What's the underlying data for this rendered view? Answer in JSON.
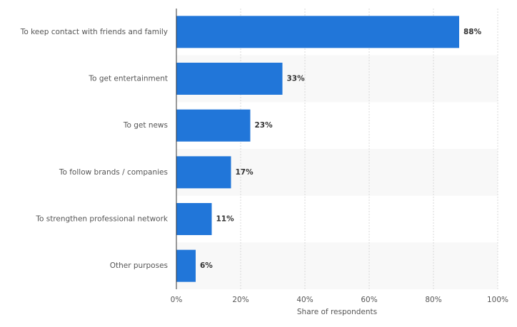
{
  "chart_data": {
    "type": "hbar",
    "categories": [
      "To keep contact with friends and family",
      "To get entertainment",
      "To get news",
      "To follow brands / companies",
      "To strengthen professional network",
      "Other purposes"
    ],
    "values": [
      88,
      33,
      23,
      17,
      11,
      6
    ],
    "value_labels": [
      "88%",
      "33%",
      "23%",
      "17%",
      "11%",
      "6%"
    ],
    "color": "#2176d9",
    "xlabel": "Share of respondents",
    "xlim": [
      0,
      100
    ],
    "xticks": [
      {
        "value": 0,
        "label": "0%"
      },
      {
        "value": 20,
        "label": "20%"
      },
      {
        "value": 40,
        "label": "40%"
      },
      {
        "value": 60,
        "label": "60%"
      },
      {
        "value": 80,
        "label": "80%"
      },
      {
        "value": 100,
        "label": "100%"
      }
    ],
    "grid": true
  }
}
